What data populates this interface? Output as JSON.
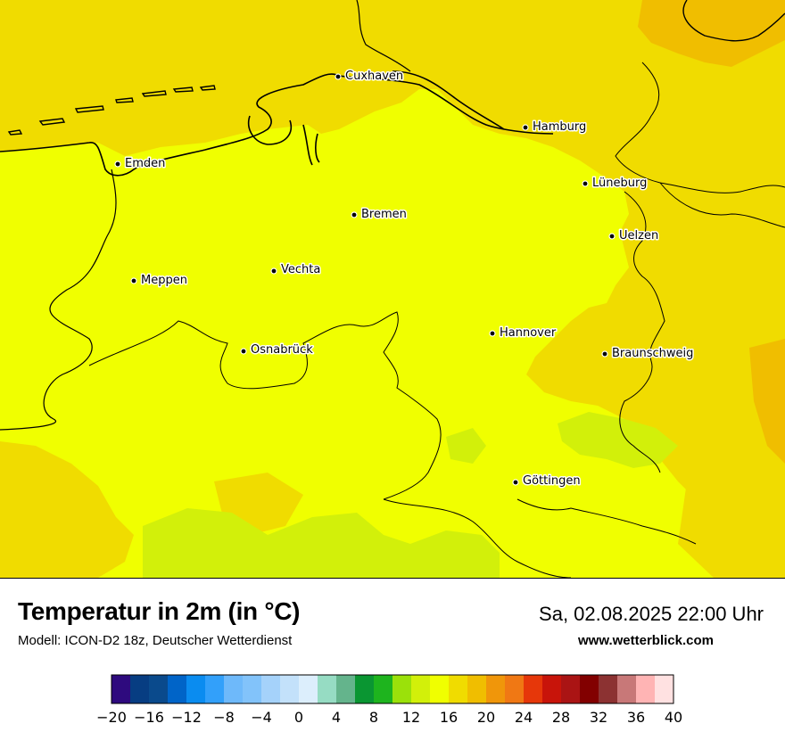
{
  "header": {
    "title": "Temperatur in 2m (in °C)",
    "model": "Modell: ICON-D2 18z, Deutscher Wetterdienst",
    "datetime": "Sa, 02.08.2025 22:00 Uhr",
    "website": "www.wetterblick.com"
  },
  "cities": [
    {
      "name": "Cuxhaven"
    },
    {
      "name": "Hamburg"
    },
    {
      "name": "Emden"
    },
    {
      "name": "Bremen"
    },
    {
      "name": "Lüneburg"
    },
    {
      "name": "Uelzen"
    },
    {
      "name": "Vechta"
    },
    {
      "name": "Meppen"
    },
    {
      "name": "Hannover"
    },
    {
      "name": "Osnabrück"
    },
    {
      "name": "Braunschweig"
    },
    {
      "name": "Göttingen"
    }
  ],
  "legend": {
    "min": -20,
    "max": 40,
    "step": 2,
    "tick_labels": [
      "−20",
      "−16",
      "−12",
      "−8",
      "−4",
      "0",
      "4",
      "8",
      "12",
      "16",
      "20",
      "24",
      "28",
      "32",
      "36",
      "40"
    ],
    "colors": [
      "#2e0a7e",
      "#073d82",
      "#0a4a8c",
      "#0064c8",
      "#0a8cf0",
      "#32a0fa",
      "#6eb9fa",
      "#82c3fa",
      "#a5d2fa",
      "#c3e1fa",
      "#dceefc",
      "#96dcc3",
      "#64b48c",
      "#0a9632",
      "#1eb41e",
      "#9be10a",
      "#d2f00a",
      "#f0ff00",
      "#f0dc00",
      "#f0be00",
      "#f0960a",
      "#f07814",
      "#e6370a",
      "#c8140a",
      "#aa1414",
      "#820000",
      "#8c3232",
      "#c87878",
      "#ffb4b4",
      "#ffe1e1"
    ]
  },
  "map_colors": {
    "t16_18": "#f0ff00",
    "t18_20": "#f0dc00",
    "t20_22": "#f0be00",
    "t14_16": "#d2f00a"
  }
}
